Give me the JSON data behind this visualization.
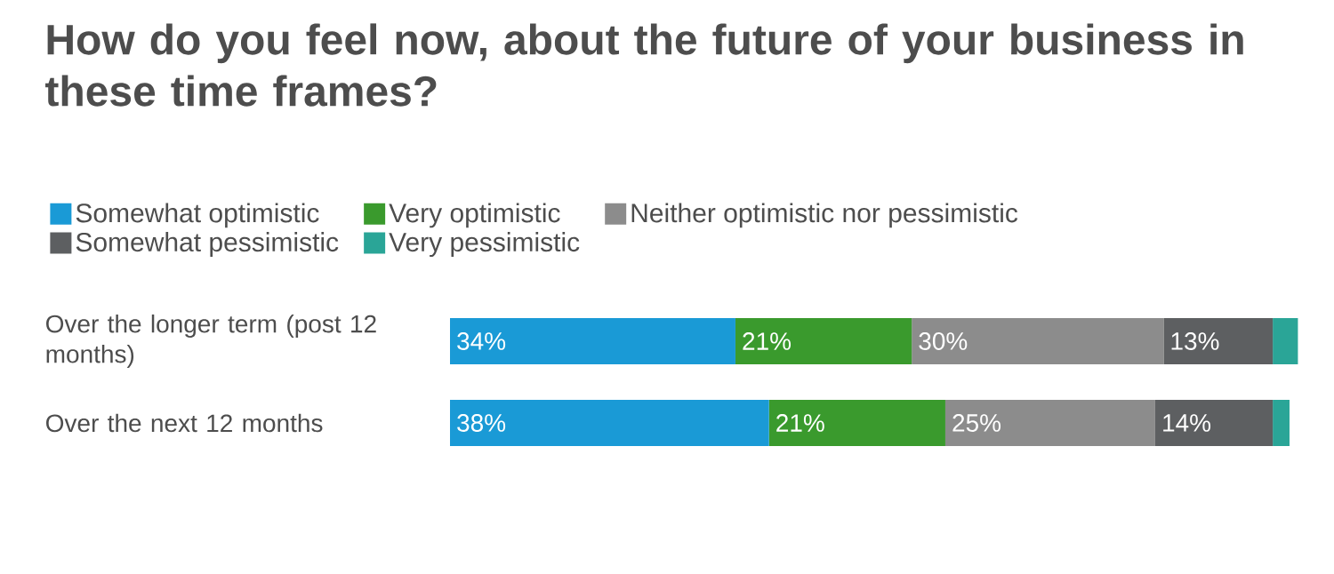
{
  "chart_data": {
    "type": "bar",
    "orientation": "horizontal",
    "stacked": true,
    "title": "How do you feel now, about the future of your business in these time frames?",
    "categories": [
      "Over the longer term (post 12 months)",
      "Over the next 12 months"
    ],
    "series": [
      {
        "name": "Somewhat optimistic",
        "color": "#1a9ad6",
        "values": [
          34,
          38
        ],
        "value_labels": [
          "34%",
          "38%"
        ]
      },
      {
        "name": "Very optimistic",
        "color": "#3a9a2d",
        "values": [
          21,
          21
        ],
        "value_labels": [
          "21%",
          "21%"
        ]
      },
      {
        "name": "Neither optimistic nor pessimistic",
        "color": "#8c8c8c",
        "values": [
          30,
          25
        ],
        "value_labels": [
          "30%",
          "25%"
        ]
      },
      {
        "name": "Somewhat pessimistic",
        "color": "#5d5f61",
        "values": [
          13,
          14
        ],
        "value_labels": [
          "13%",
          "14%"
        ]
      },
      {
        "name": "Very pessimistic",
        "color": "#2aa597",
        "values": [
          3,
          2
        ],
        "value_labels": [
          null,
          null
        ]
      }
    ],
    "legend": "top"
  }
}
